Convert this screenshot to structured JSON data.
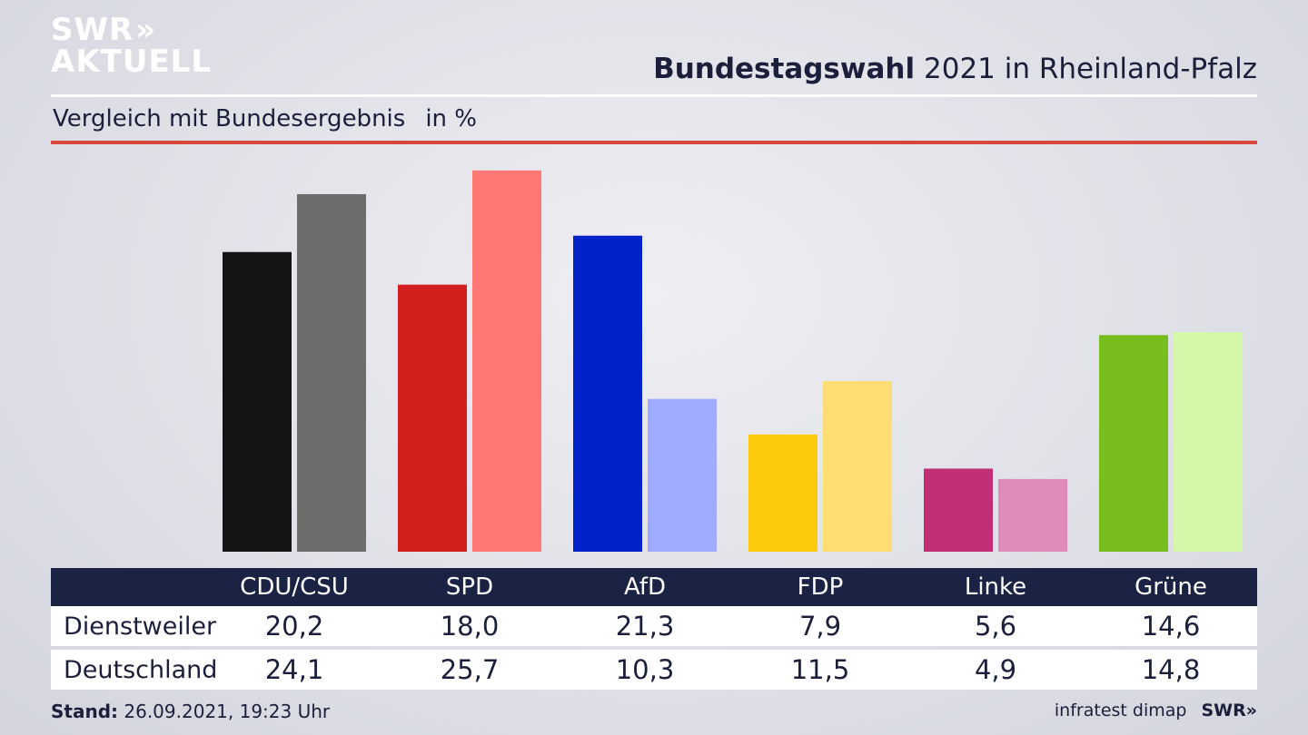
{
  "brand": {
    "logo_line1": "SWR",
    "logo_arrows": "»",
    "logo_line2": "AKTUELL",
    "footer_logo": "SWR»"
  },
  "header": {
    "title_bold": "Bundestagswahl",
    "title_rest": "2021 in Rheinland-Pfalz",
    "subtitle": "Vergleich mit Bundesergebnis",
    "unit": "in %"
  },
  "footer": {
    "stand_label": "Stand:",
    "stand_value": "26.09.2021, 19:23 Uhr",
    "source": "infratest dimap"
  },
  "chart_data": {
    "type": "bar",
    "title": "Bundestagswahl 2021 in Rheinland-Pfalz",
    "subtitle": "Vergleich mit Bundesergebnis",
    "unit": "in %",
    "categories": [
      "CDU/CSU",
      "SPD",
      "AfD",
      "FDP",
      "Linke",
      "Grüne"
    ],
    "series": [
      {
        "name": "Dienstweiler",
        "values": [
          20.2,
          18.0,
          21.3,
          7.9,
          5.6,
          14.6
        ],
        "labels": [
          "20,2",
          "18,0",
          "21,3",
          "7,9",
          "5,6",
          "14,6"
        ],
        "colors": [
          "#141414",
          "#d41f1f",
          "#0022c8",
          "#fecb0c",
          "#c22f76",
          "#77bd1e"
        ]
      },
      {
        "name": "Deutschland",
        "values": [
          24.1,
          25.7,
          10.3,
          11.5,
          4.9,
          14.8
        ],
        "labels": [
          "24,1",
          "25,7",
          "10,3",
          "11,5",
          "4,9",
          "14,8"
        ],
        "colors": [
          "#6e6d6b",
          "#ff7873",
          "#9eabff",
          "#fede72",
          "#e08bb9",
          "#d5f7aa"
        ]
      }
    ],
    "ylim": [
      0,
      26
    ],
    "grid": false,
    "legend": "table-bottom"
  }
}
